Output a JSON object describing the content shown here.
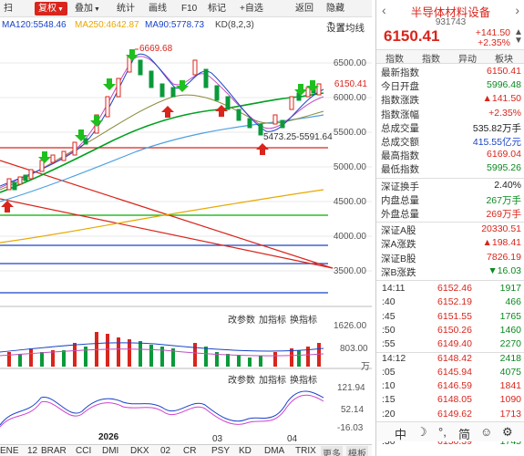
{
  "toolbar": {
    "items": [
      {
        "label": "扫",
        "active": false
      },
      {
        "label": "复权",
        "active": true
      },
      {
        "label": "叠加",
        "active": false
      },
      {
        "label": "统计",
        "active": false
      },
      {
        "label": "画线",
        "active": false
      },
      {
        "label": "F10",
        "active": false
      },
      {
        "label": "标记",
        "active": false
      },
      {
        "label": "+自选",
        "active": false
      },
      {
        "label": "返回",
        "active": false
      },
      {
        "label": "隐藏",
        "active": false
      }
    ]
  },
  "legend": {
    "ma120": "MA120:5548.46",
    "ma250": "MA250:4642.87",
    "ma90": "MA90:5778.73",
    "kd": "KD(8,2,3)",
    "setting_label": "设置均线",
    "close_symbol": "×",
    "colors": {
      "ma120": "#1a44c8",
      "ma250": "#e8a800",
      "ma90": "#1a44c8",
      "kd": "#555555"
    }
  },
  "main_chart": {
    "price_labels": [
      "6500.00",
      "6000.00",
      "5500.00",
      "5000.00",
      "4500.00",
      "4000.00",
      "3500.00"
    ],
    "current_price": "6150.41",
    "high_annotation": "6669.68",
    "low_annotation": "5473.25-5591.64"
  },
  "volume_panel": {
    "buttons": [
      "改参数",
      "加指标",
      "换指标"
    ],
    "labels": [
      "1626.00",
      "803.00",
      "万"
    ]
  },
  "kd_panel": {
    "buttons": [
      "改参数",
      "加指标",
      "换指标"
    ],
    "labels": [
      "121.94",
      "52.14",
      "-16.03"
    ]
  },
  "x_axis": {
    "year": "2026",
    "ticks": [
      "12",
      "BRAR",
      "CCI",
      "DMI",
      "DKX",
      "02",
      "CR",
      "PSY",
      "KD",
      "DMA",
      "TRIX",
      "04"
    ],
    "left_stub": "ENE",
    "right_buttons": [
      "更多",
      "模板"
    ]
  },
  "quote": {
    "name": "半导体材料设备",
    "code": "931743",
    "price": "6150.41",
    "change": "+141.50",
    "change_pct": "+2.35%",
    "tabs": [
      "指数",
      "指数",
      "异动",
      "板块"
    ],
    "stats": [
      {
        "k": "最新指数",
        "v": "6150.41",
        "c": "red"
      },
      {
        "k": "今日开盘",
        "v": "5996.48",
        "c": "green"
      },
      {
        "k": "指数涨跌",
        "v": "▲141.50",
        "c": "red"
      },
      {
        "k": "指数涨幅",
        "v": "+2.35%",
        "c": "red"
      },
      {
        "k": "总成交量",
        "v": "535.82万手",
        "c": "plain"
      },
      {
        "k": "总成交额",
        "v": "415.55亿元",
        "c": "blue"
      },
      {
        "k": "最高指数",
        "v": "6169.04",
        "c": "red"
      },
      {
        "k": "最低指数",
        "v": "5995.26",
        "c": "green"
      }
    ],
    "stats2": [
      {
        "k": "深证换手",
        "v": "2.40%",
        "c": "plain"
      },
      {
        "k": "内盘总量",
        "v": "267万手",
        "c": "green"
      },
      {
        "k": "外盘总量",
        "v": "269万手",
        "c": "red"
      }
    ],
    "stats3": [
      {
        "k": "深证A股",
        "v": "20330.51",
        "c": "red"
      },
      {
        "k": "深A涨跌",
        "v": "▲198.41",
        "c": "red"
      },
      {
        "k": "深证B股",
        "v": "7826.19",
        "c": "red"
      },
      {
        "k": "深B涨跌",
        "v": "▼16.03",
        "c": "green"
      }
    ],
    "ticks": [
      {
        "t": "14:11",
        "p": "6152.46",
        "q": "1917",
        "pc": "red",
        "qc": "green"
      },
      {
        "t": ":40",
        "p": "6152.19",
        "q": "466",
        "pc": "red",
        "qc": "green"
      },
      {
        "t": ":45",
        "p": "6151.55",
        "q": "1765",
        "pc": "red",
        "qc": "green"
      },
      {
        "t": ":50",
        "p": "6150.26",
        "q": "1460",
        "pc": "red",
        "qc": "green"
      },
      {
        "t": ":55",
        "p": "6149.40",
        "q": "2270",
        "pc": "red",
        "qc": "green"
      },
      {
        "t": "14:12",
        "p": "6148.42",
        "q": "2418",
        "pc": "red",
        "qc": "green"
      },
      {
        "t": ":05",
        "p": "6145.94",
        "q": "4075",
        "pc": "red",
        "qc": "green"
      },
      {
        "t": ":10",
        "p": "6146.59",
        "q": "1841",
        "pc": "red",
        "qc": "red"
      },
      {
        "t": ":15",
        "p": "6148.05",
        "q": "1090",
        "pc": "red",
        "qc": "red"
      },
      {
        "t": ":20",
        "p": "6149.62",
        "q": "1713",
        "pc": "red",
        "qc": "red"
      },
      {
        "t": ":25",
        "p": "6150.07",
        "q": "1069",
        "pc": "red",
        "qc": "red"
      },
      {
        "t": ":30",
        "p": "6150.39",
        "q": "1745",
        "pc": "red",
        "qc": "green"
      }
    ],
    "bottom": [
      "中",
      "☽",
      "°,",
      "简",
      "☺",
      "⚙"
    ]
  }
}
